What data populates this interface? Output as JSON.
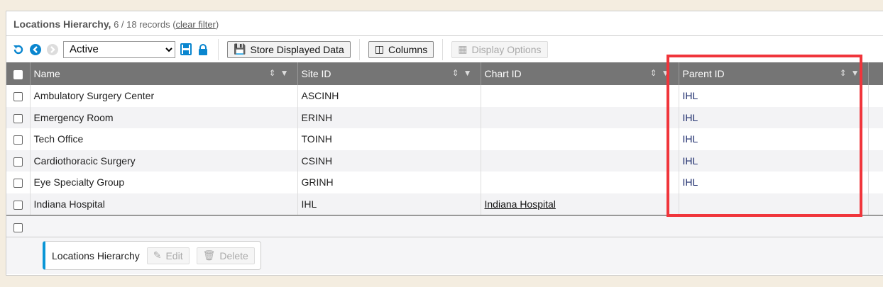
{
  "header": {
    "title": "Locations Hierarchy,",
    "count": "6 / 18 records",
    "clear_filter": "clear filter"
  },
  "toolbar": {
    "filter_value": "Active",
    "store_label": "Store Displayed Data",
    "columns_label": "Columns",
    "display_options_label": "Display Options"
  },
  "columns": [
    "Name",
    "Site ID",
    "Chart ID",
    "Parent ID"
  ],
  "rows": [
    {
      "name": "Ambulatory Surgery Center",
      "site_id": "ASCINH",
      "chart_id": "",
      "parent_id": "IHL"
    },
    {
      "name": "Emergency Room",
      "site_id": "ERINH",
      "chart_id": "",
      "parent_id": "IHL"
    },
    {
      "name": "Tech Office",
      "site_id": "TOINH",
      "chart_id": "",
      "parent_id": "IHL"
    },
    {
      "name": "Cardiothoracic Surgery",
      "site_id": "CSINH",
      "chart_id": "",
      "parent_id": "IHL"
    },
    {
      "name": "Eye Specialty Group",
      "site_id": "GRINH",
      "chart_id": "",
      "parent_id": "IHL"
    },
    {
      "name": "Indiana Hospital",
      "site_id": "IHL",
      "chart_id": "Indiana Hospital",
      "parent_id": ""
    }
  ],
  "detail": {
    "label": "Locations Hierarchy",
    "edit": "Edit",
    "delete": "Delete"
  },
  "colors": {
    "accent": "#0a96d6",
    "highlight": "#f0353b",
    "header_bg": "#757575"
  }
}
